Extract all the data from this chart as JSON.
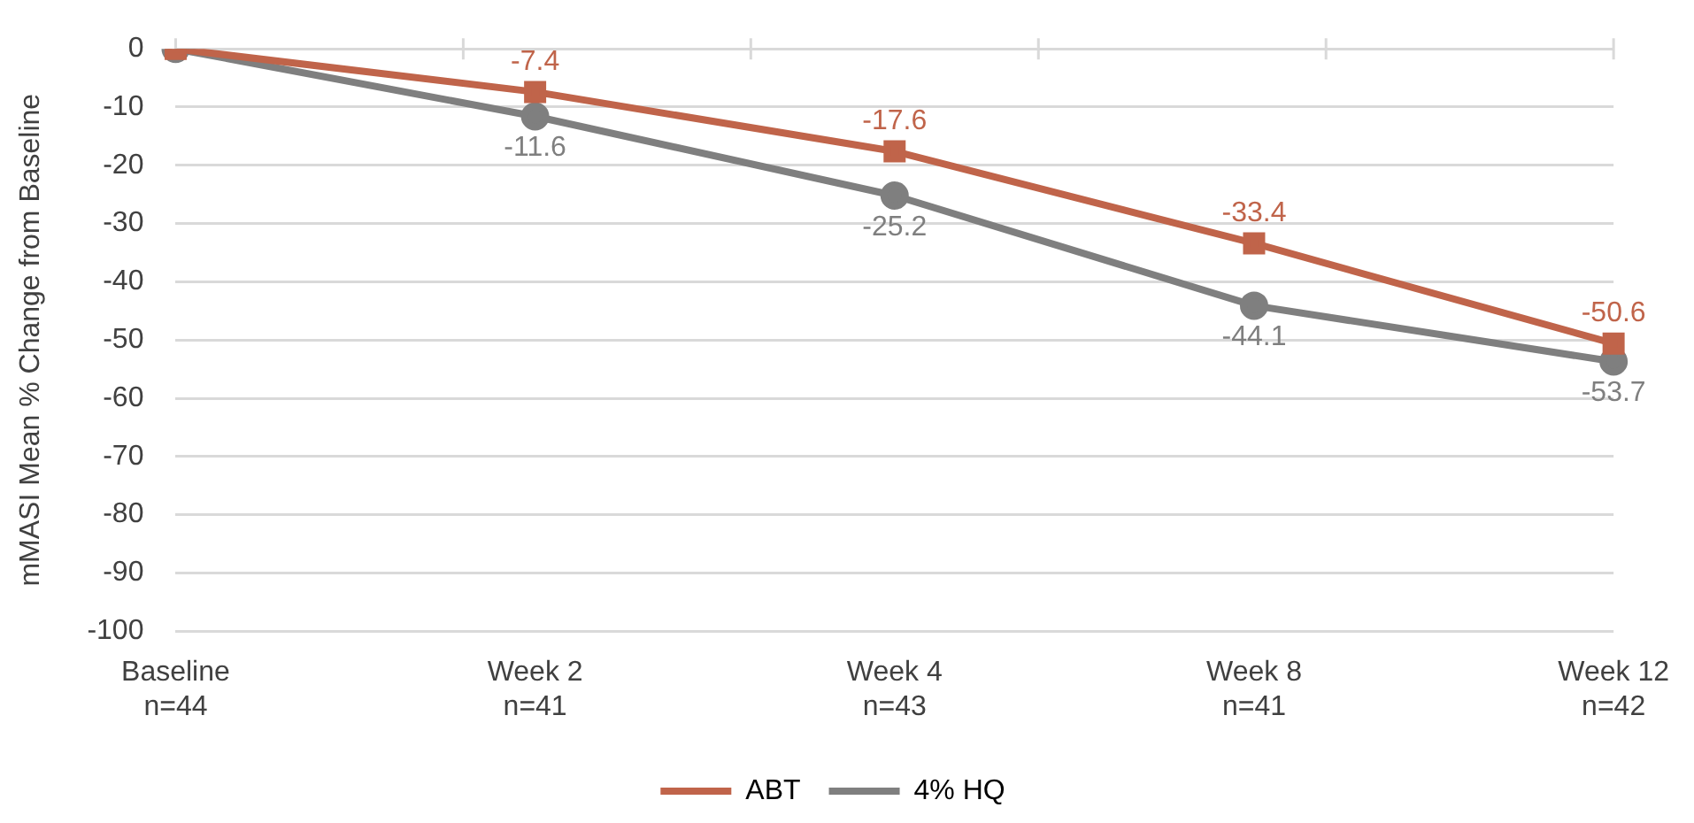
{
  "chart_data": {
    "type": "line",
    "ylabel": "mMASI Mean % Change from Baseline",
    "categories": [
      "Baseline\nn=44",
      "Week 2\nn=41",
      "Week 4\nn=43",
      "Week 8\nn=41",
      "Week 12\nn=42"
    ],
    "series": [
      {
        "name": "ABT",
        "color": "#c0644a",
        "marker": "square",
        "values": [
          0,
          -7.4,
          -17.6,
          -33.4,
          -50.6
        ],
        "value_labels": [
          null,
          "-7.4",
          "-17.6",
          "-33.4",
          "-50.6"
        ]
      },
      {
        "name": "4% HQ",
        "color": "#7f7f7f",
        "marker": "circle",
        "values": [
          0,
          -11.6,
          -25.2,
          -44.1,
          -53.7
        ],
        "value_labels": [
          null,
          "-11.6",
          "-25.2",
          "-44.1",
          "-53.7"
        ]
      }
    ],
    "ylim": [
      -100,
      0
    ],
    "yticks": [
      -100,
      -90,
      -80,
      -70,
      -60,
      -50,
      -40,
      -30,
      -20,
      -10,
      0
    ],
    "grid": "y",
    "legend": "bottom",
    "line_style": "solid"
  }
}
